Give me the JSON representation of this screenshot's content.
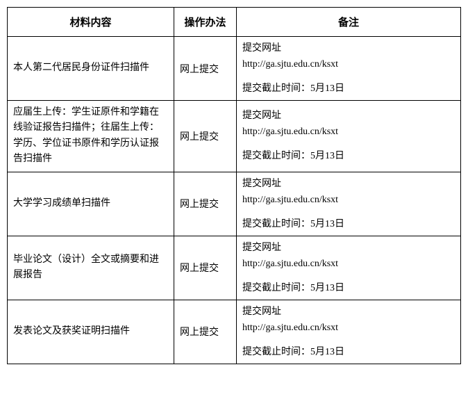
{
  "table": {
    "headers": {
      "material": "材料内容",
      "method": "操作办法",
      "note": "备注"
    },
    "rows": [
      {
        "material": "本人第二代居民身份证件扫描件",
        "method": "网上提交",
        "note": {
          "line1": "提交网址",
          "line2": "http://ga.sjtu.edu.cn/ksxt",
          "line3": "提交截止时间：5月13日"
        }
      },
      {
        "material": "应届生上传：学生证原件和学籍在线验证报告扫描件；往届生上传：学历、学位证书原件和学历认证报告扫描件",
        "method": "网上提交",
        "note": {
          "line1": "提交网址",
          "line2": "http://ga.sjtu.edu.cn/ksxt",
          "line3": "提交截止时间：5月13日"
        }
      },
      {
        "material": "大学学习成绩单扫描件",
        "method": "网上提交",
        "note": {
          "line1": "提交网址",
          "line2": "http://ga.sjtu.edu.cn/ksxt",
          "line3": "提交截止时间：5月13日"
        }
      },
      {
        "material": "毕业论文（设计）全文或摘要和进展报告",
        "method": "网上提交",
        "note": {
          "line1": "提交网址",
          "line2": "http://ga.sjtu.edu.cn/ksxt",
          "line3": "提交截止时间：5月13日"
        }
      },
      {
        "material": "发表论文及获奖证明扫描件",
        "method": "网上提交",
        "note": {
          "line1": "提交网址",
          "line2": "http://ga.sjtu.edu.cn/ksxt",
          "line3": "提交截止时间：5月13日"
        }
      }
    ]
  }
}
